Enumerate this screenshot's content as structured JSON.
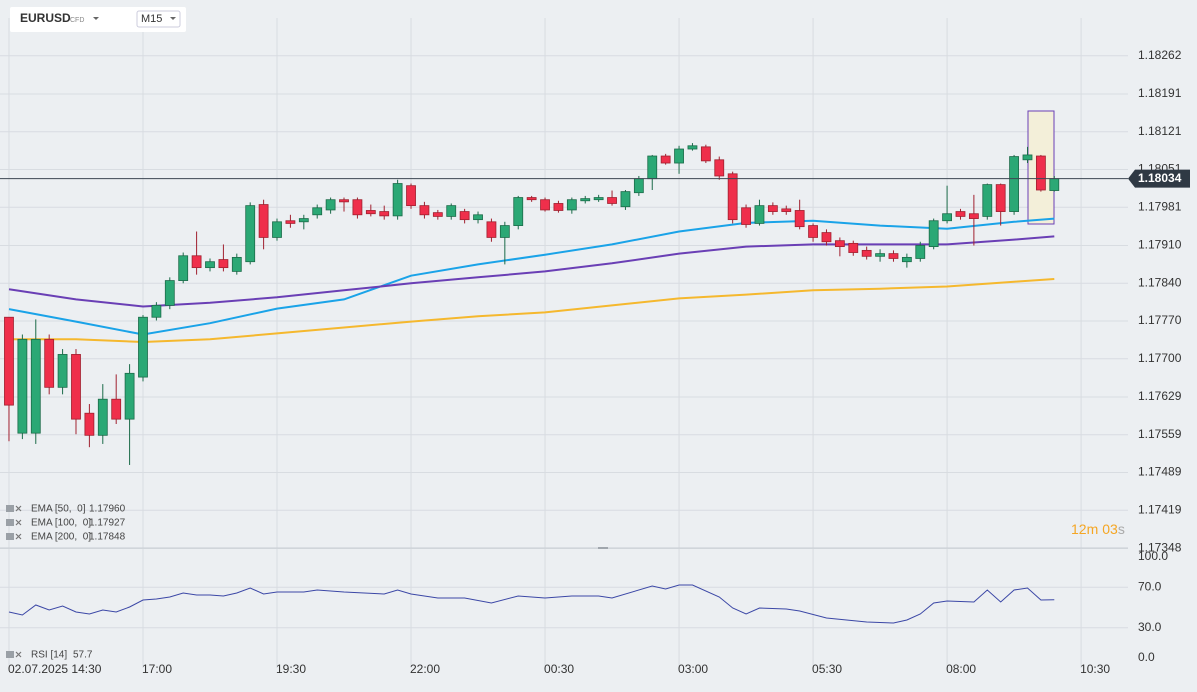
{
  "header": {
    "symbol": "EURUSD",
    "market": "CFD",
    "timeframe": "M15"
  },
  "chart_data": {
    "type": "candlestick",
    "up_color": "#2ba875",
    "down_color": "#ef2f4b",
    "xlim": [
      -0.67,
      83.5
    ],
    "xticks": [
      {
        "value": 0,
        "label": "02.07.2025 14:30"
      },
      {
        "value": 10,
        "label": "17:00"
      },
      {
        "value": 20,
        "label": "19:30"
      },
      {
        "value": 30,
        "label": "22:00"
      },
      {
        "value": 40,
        "label": "00:30"
      },
      {
        "value": 50,
        "label": "03:00"
      },
      {
        "value": 60,
        "label": "05:30"
      },
      {
        "value": 70,
        "label": "08:00"
      },
      {
        "value": 80,
        "label": "10:30"
      }
    ],
    "ylim": [
      1.17349,
      1.18332
    ],
    "yticks": [
      1.18262,
      1.18191,
      1.18121,
      1.18051,
      1.17981,
      {
        "value": 1.1791,
        "label": "1.17910"
      },
      {
        "value": 1.1784,
        "label": "1.17840"
      },
      {
        "value": 1.1777,
        "label": "1.17770"
      },
      {
        "value": 1.177,
        "label": "1.17700"
      },
      1.17629,
      1.17559,
      1.17489,
      1.17419,
      1.17348
    ],
    "grid": true,
    "last_price": 1.18034,
    "countdown": [
      "12",
      "m",
      "03",
      "s"
    ],
    "open": [
      1.17777,
      1.17562,
      1.17562,
      1.17736,
      1.17647,
      1.17708,
      1.17599,
      1.17558,
      1.17625,
      1.17588,
      1.17666,
      1.17777,
      1.17799,
      1.17845,
      1.17891,
      1.17869,
      1.17884,
      1.17862,
      1.1788,
      1.17986,
      1.17925,
      1.17956,
      1.17954,
      1.17967,
      1.17976,
      1.17995,
      1.17995,
      1.17975,
      1.17973,
      1.17965,
      1.18021,
      1.17984,
      1.17971,
      1.17964,
      1.17973,
      1.17958,
      1.17954,
      1.17925,
      1.17947,
      1.17999,
      1.17995,
      1.17988,
      1.17976,
      1.17993,
      1.17995,
      1.17999,
      1.17982,
      1.18008,
      1.18034,
      1.18076,
      1.18063,
      1.18089,
      1.18093,
      1.18069,
      1.18043,
      1.1798,
      1.17951,
      1.17984,
      1.17978,
      1.17975,
      1.17947,
      1.17934,
      1.17919,
      1.17914,
      1.17901,
      1.1789,
      1.17895,
      1.1788,
      1.17886,
      1.17908,
      1.17956,
      1.17973,
      1.17969,
      1.17964,
      1.18023,
      1.17973,
      1.18069,
      1.18076,
      1.18012
    ],
    "high": [
      1.17777,
      1.17745,
      1.17773,
      1.17745,
      1.17718,
      1.17718,
      1.17616,
      1.17653,
      1.17671,
      1.1769,
      1.17781,
      1.17805,
      1.17851,
      1.17897,
      1.17936,
      1.17886,
      1.17912,
      1.17895,
      1.1799,
      1.17995,
      1.1796,
      1.17967,
      1.17967,
      1.17986,
      1.17999,
      1.17999,
      1.17999,
      1.17986,
      1.17984,
      1.18032,
      1.18025,
      1.17991,
      1.17976,
      1.17988,
      1.17978,
      1.17973,
      1.1796,
      1.17954,
      1.18002,
      1.18002,
      1.17999,
      1.17993,
      1.17999,
      1.18002,
      1.18004,
      1.18012,
      1.18013,
      1.18039,
      1.18078,
      1.1808,
      1.18095,
      1.181,
      1.18097,
      1.18075,
      1.18047,
      1.17986,
      1.17995,
      1.1799,
      1.17984,
      1.17995,
      1.17951,
      1.1794,
      1.17925,
      1.17919,
      1.17908,
      1.17903,
      1.17901,
      1.17895,
      1.17917,
      1.1796,
      1.18021,
      1.17978,
      1.18004,
      1.18025,
      1.18025,
      1.18078,
      1.18093,
      1.18078,
      1.18039
    ],
    "low": [
      1.17547,
      1.17551,
      1.17542,
      1.17634,
      1.17634,
      1.1756,
      1.17536,
      1.17542,
      1.17579,
      1.17503,
      1.17658,
      1.17771,
      1.17792,
      1.1784,
      1.17856,
      1.17862,
      1.17862,
      1.17856,
      1.17875,
      1.17903,
      1.17919,
      1.17943,
      1.1794,
      1.1796,
      1.17969,
      1.17973,
      1.1796,
      1.17964,
      1.17958,
      1.17958,
      1.17978,
      1.1796,
      1.17958,
      1.17958,
      1.17951,
      1.17951,
      1.17917,
      1.17875,
      1.1794,
      1.17991,
      1.17973,
      1.17971,
      1.17969,
      1.17988,
      1.17991,
      1.17984,
      1.17976,
      1.18002,
      1.18013,
      1.1806,
      1.18043,
      1.18086,
      1.18063,
      1.18032,
      1.17951,
      1.17943,
      1.17947,
      1.17967,
      1.17967,
      1.1794,
      1.17917,
      1.1791,
      1.1789,
      1.17891,
      1.17884,
      1.1788,
      1.1788,
      1.17869,
      1.1788,
      1.17903,
      1.17951,
      1.17958,
      1.1791,
      1.17958,
      1.17947,
      1.17967,
      1.18063,
      1.1801,
      1.1801
    ],
    "close": [
      1.17614,
      1.17736,
      1.17736,
      1.17647,
      1.17708,
      1.17588,
      1.17558,
      1.17625,
      1.17588,
      1.17673,
      1.17777,
      1.17799,
      1.17845,
      1.17891,
      1.17869,
      1.1788,
      1.17869,
      1.17888,
      1.17984,
      1.17925,
      1.17954,
      1.17951,
      1.1796,
      1.1798,
      1.17995,
      1.17991,
      1.17967,
      1.17969,
      1.17965,
      1.18025,
      1.17984,
      1.17967,
      1.17964,
      1.17984,
      1.17958,
      1.17967,
      1.17925,
      1.17947,
      1.17999,
      1.17995,
      1.17976,
      1.17975,
      1.17995,
      1.17997,
      1.17999,
      1.17988,
      1.1801,
      1.18034,
      1.18076,
      1.18063,
      1.18089,
      1.18095,
      1.18067,
      1.18039,
      1.17958,
      1.17949,
      1.17984,
      1.17973,
      1.17973,
      1.17945,
      1.17925,
      1.17917,
      1.17908,
      1.17897,
      1.1789,
      1.17895,
      1.17886,
      1.17888,
      1.1791,
      1.17956,
      1.17969,
      1.17964,
      1.1796,
      1.18023,
      1.17973,
      1.18075,
      1.18078,
      1.18013,
      1.18034
    ],
    "series": [
      {
        "name": "EMA [50,  0]",
        "legend_value": "1.17960",
        "color": "#1aa3e8",
        "x": [
          0,
          5,
          10,
          15,
          20,
          25,
          30,
          35,
          40,
          45,
          50,
          55,
          60,
          65,
          70,
          75,
          78
        ],
        "values": [
          1.17792,
          1.17769,
          1.17745,
          1.17766,
          1.17793,
          1.1781,
          1.17854,
          1.17875,
          1.17893,
          1.17912,
          1.17936,
          1.17952,
          1.17956,
          1.17947,
          1.17941,
          1.17954,
          1.1796
        ]
      },
      {
        "name": "EMA [100,  0]",
        "legend_value": "1.17927",
        "color": "#6a3fb5",
        "x": [
          0,
          5,
          10,
          15,
          20,
          25,
          30,
          35,
          40,
          45,
          50,
          55,
          60,
          65,
          70,
          75,
          78
        ],
        "values": [
          1.17829,
          1.1781,
          1.17797,
          1.17804,
          1.17814,
          1.17827,
          1.1784,
          1.17851,
          1.17862,
          1.17877,
          1.17895,
          1.17908,
          1.17912,
          1.17912,
          1.17912,
          1.17921,
          1.17927
        ]
      },
      {
        "name": "EMA [200,  0]",
        "legend_value": "1.17848",
        "color": "#f5b82e",
        "x": [
          0,
          5,
          10,
          15,
          20,
          25,
          30,
          35,
          40,
          45,
          50,
          55,
          60,
          65,
          70,
          75,
          78
        ],
        "values": [
          1.17736,
          1.17736,
          1.17731,
          1.17736,
          1.17747,
          1.17758,
          1.17769,
          1.17779,
          1.17786,
          1.17799,
          1.17812,
          1.17819,
          1.17827,
          1.1783,
          1.17834,
          1.17843,
          1.17848
        ]
      }
    ],
    "rsi": {
      "name": "RSI [14]",
      "color": "#3b47a6",
      "ylim": [
        0,
        100
      ],
      "yticks": [
        {
          "value": 100,
          "label": "100.0"
        },
        {
          "value": 70,
          "label": "70.0"
        },
        {
          "value": 30,
          "label": "30.0"
        },
        {
          "value": 0,
          "label": "0.0"
        }
      ],
      "x": [
        0,
        1,
        2,
        3,
        4,
        5,
        6,
        7,
        8,
        9,
        10,
        11,
        12,
        13,
        14,
        15,
        16,
        17,
        18,
        19,
        20,
        22,
        23,
        25,
        28,
        29,
        30,
        32,
        34,
        36,
        38,
        40,
        42,
        44,
        45,
        48,
        49,
        50,
        51,
        53,
        54,
        55,
        56,
        58,
        59,
        61,
        64,
        66,
        67,
        68,
        69,
        70,
        72,
        73,
        74,
        75,
        76,
        77,
        78
      ],
      "values": [
        45.5,
        42.6,
        52.5,
        47.5,
        51.5,
        45.5,
        43.6,
        47.5,
        45.5,
        50.5,
        57.4,
        58.4,
        60.4,
        64.4,
        62.4,
        62.4,
        61.4,
        64.4,
        69.3,
        63.4,
        65.3,
        65.3,
        67.3,
        65.3,
        63.4,
        67.3,
        63.4,
        59.4,
        59.4,
        54.5,
        61.4,
        59.4,
        61.4,
        61.4,
        59.4,
        71.3,
        68.3,
        72.3,
        72.3,
        60.4,
        49.5,
        43.6,
        49.5,
        48.5,
        46.5,
        39.6,
        35.6,
        34.7,
        37.6,
        43.6,
        54.5,
        56.4,
        55.4,
        67.3,
        55.4,
        67.3,
        69.3,
        57.4,
        57.7
      ]
    }
  }
}
